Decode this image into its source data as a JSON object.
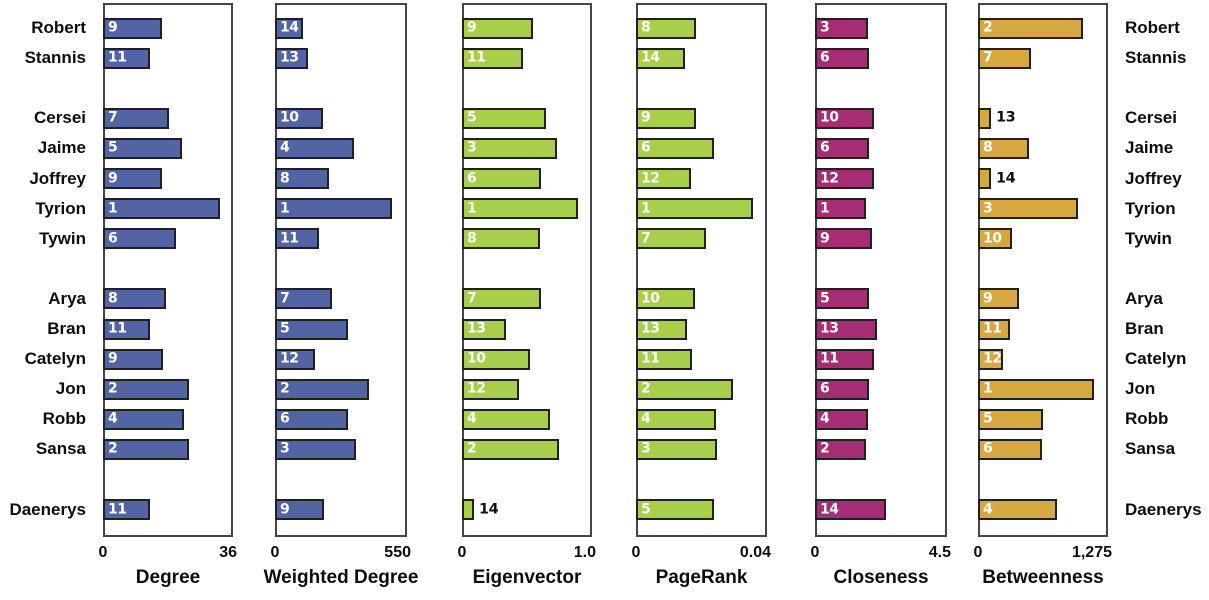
{
  "chart_data": {
    "type": "bar",
    "orientation": "horizontal",
    "characters": [
      "Robert",
      "Stannis",
      "Cersei",
      "Jaime",
      "Joffrey",
      "Tyrion",
      "Tywin",
      "Arya",
      "Bran",
      "Catelyn",
      "Jon",
      "Robb",
      "Sansa",
      "Daenerys"
    ],
    "group_slots": [
      0,
      1,
      3,
      4,
      5,
      6,
      7,
      9,
      10,
      11,
      12,
      13,
      14,
      16
    ],
    "legend_position": "none",
    "grid": false,
    "measures": [
      {
        "label": "Degree",
        "axis_min": "0",
        "axis_max": "36",
        "bar_color": "#5364a5",
        "ranks": [
          "9",
          "11",
          "7",
          "5",
          "9",
          "1",
          "6",
          "8",
          "11",
          "9",
          "2",
          "4",
          "2",
          "11"
        ],
        "bar_fracs": [
          0.456,
          0.354,
          0.506,
          0.608,
          0.456,
          0.91,
          0.564,
          0.487,
          0.359,
          0.462,
          0.667,
          0.628,
          0.667,
          0.359
        ]
      },
      {
        "label": "Weighted Degree",
        "axis_min": "0",
        "axis_max": "550",
        "bar_color": "#5364a5",
        "ranks": [
          "14",
          "13",
          "10",
          "4",
          "8",
          "1",
          "11",
          "7",
          "5",
          "12",
          "2",
          "6",
          "3",
          "9"
        ],
        "bar_fracs": [
          0.206,
          0.239,
          0.359,
          0.598,
          0.41,
          0.897,
          0.332,
          0.432,
          0.553,
          0.294,
          0.716,
          0.553,
          0.616,
          0.369
        ]
      },
      {
        "label": "Eigenvector",
        "axis_min": "0",
        "axis_max": "1.0",
        "bar_color": "#a8cf4b",
        "ranks": [
          "9",
          "11",
          "5",
          "3",
          "6",
          "1",
          "8",
          "7",
          "13",
          "10",
          "12",
          "4",
          "2",
          "14"
        ],
        "bar_fracs": [
          0.547,
          0.466,
          0.654,
          0.738,
          0.611,
          0.908,
          0.603,
          0.611,
          0.336,
          0.522,
          0.44,
          0.679,
          0.756,
          0.076
        ]
      },
      {
        "label": "PageRank",
        "axis_min": "0",
        "axis_max": "0.04",
        "bar_color": "#a8cf4b",
        "ranks": [
          "8",
          "14",
          "9",
          "6",
          "12",
          "1",
          "7",
          "10",
          "13",
          "11",
          "2",
          "4",
          "3",
          "5"
        ],
        "bar_fracs": [
          0.458,
          0.374,
          0.458,
          0.598,
          0.415,
          0.903,
          0.534,
          0.445,
          0.387,
          0.425,
          0.745,
          0.618,
          0.623,
          0.598
        ]
      },
      {
        "label": "Closeness",
        "axis_min": "0",
        "axis_max": "4.5",
        "bar_color": "#a62c74",
        "ranks": [
          "3",
          "6",
          "10",
          "6",
          "12",
          "1",
          "9",
          "5",
          "13",
          "11",
          "6",
          "4",
          "2",
          "14"
        ],
        "bar_fracs": [
          0.397,
          0.41,
          0.443,
          0.41,
          0.448,
          0.385,
          0.428,
          0.403,
          0.466,
          0.443,
          0.41,
          0.397,
          0.385,
          0.537
        ]
      },
      {
        "label": "Betweenness",
        "axis_min": "0",
        "axis_max": "1,275",
        "bar_color": "#d8a840",
        "ranks": [
          "2",
          "7",
          "13",
          "8",
          "14",
          "3",
          "10",
          "9",
          "11",
          "12",
          "1",
          "5",
          "6",
          "4"
        ],
        "bar_fracs": [
          0.821,
          0.403,
          0.087,
          0.39,
          0.087,
          0.779,
          0.254,
          0.308,
          0.236,
          0.185,
          0.908,
          0.497,
          0.492,
          0.615
        ]
      }
    ]
  }
}
